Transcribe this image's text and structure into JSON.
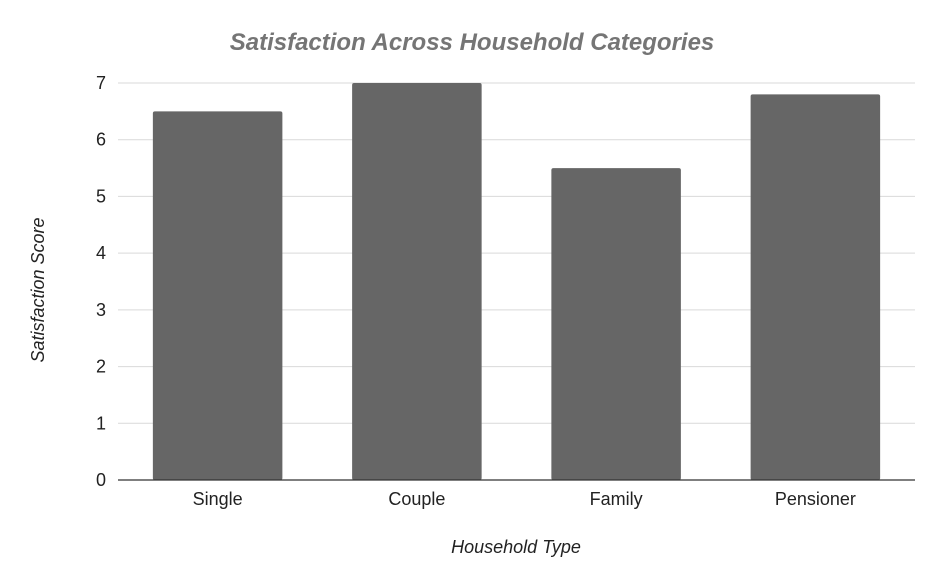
{
  "chart_data": {
    "type": "bar",
    "title": "Satisfaction Across Household Categories",
    "xlabel": "Household Type",
    "ylabel": "Satisfaction Score",
    "categories": [
      "Single",
      "Couple",
      "Family",
      "Pensioner"
    ],
    "values": [
      6.5,
      7.0,
      5.5,
      6.8
    ],
    "ylim": [
      0,
      7
    ],
    "yticks": [
      "0",
      "1",
      "2",
      "3",
      "4",
      "5",
      "6",
      "7"
    ],
    "grid": true,
    "legend": "none",
    "bar_color": "#666666",
    "grid_color": "#d9d9d9",
    "title_color": "#757575"
  }
}
